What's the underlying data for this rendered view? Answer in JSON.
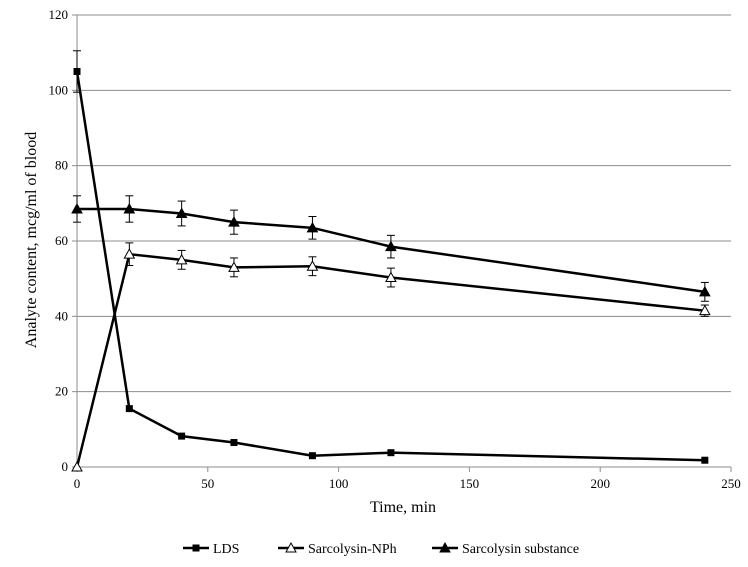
{
  "chart_data": {
    "type": "line",
    "xlabel": "Time, min",
    "ylabel": "Analyte content, mcg/ml of blood",
    "xlim": [
      0,
      250
    ],
    "ylim": [
      0,
      120
    ],
    "xticks": [
      0,
      50,
      100,
      150,
      200,
      250
    ],
    "yticks": [
      0,
      20,
      40,
      60,
      80,
      100,
      120
    ],
    "grid": "horizontal",
    "legend_position": "bottom",
    "series": [
      {
        "name": "LDS",
        "marker": "square",
        "color": "#000000",
        "x": [
          0,
          20,
          40,
          60,
          90,
          120,
          240
        ],
        "y": [
          105,
          15.5,
          8.2,
          6.5,
          3.0,
          3.8,
          1.8
        ],
        "err": [
          5.5,
          0,
          0,
          0,
          0,
          0,
          0
        ]
      },
      {
        "name": "Sarcolysin-NPh",
        "marker": "triangle-open",
        "color": "#000000",
        "x": [
          0,
          20,
          40,
          60,
          90,
          120,
          240
        ],
        "y": [
          0,
          56.5,
          55,
          53,
          53.3,
          50.3,
          41.5
        ],
        "err": [
          0,
          3,
          2.5,
          2.5,
          2.5,
          2.5,
          1.5
        ]
      },
      {
        "name": "Sarcolysin substance",
        "marker": "triangle-filled",
        "color": "#000000",
        "x": [
          0,
          20,
          40,
          60,
          90,
          120,
          240
        ],
        "y": [
          68.5,
          68.5,
          67.3,
          65,
          63.5,
          58.5,
          46.5
        ],
        "err": [
          3.5,
          3.5,
          3.3,
          3.2,
          3.0,
          3.0,
          2.5
        ]
      }
    ]
  }
}
